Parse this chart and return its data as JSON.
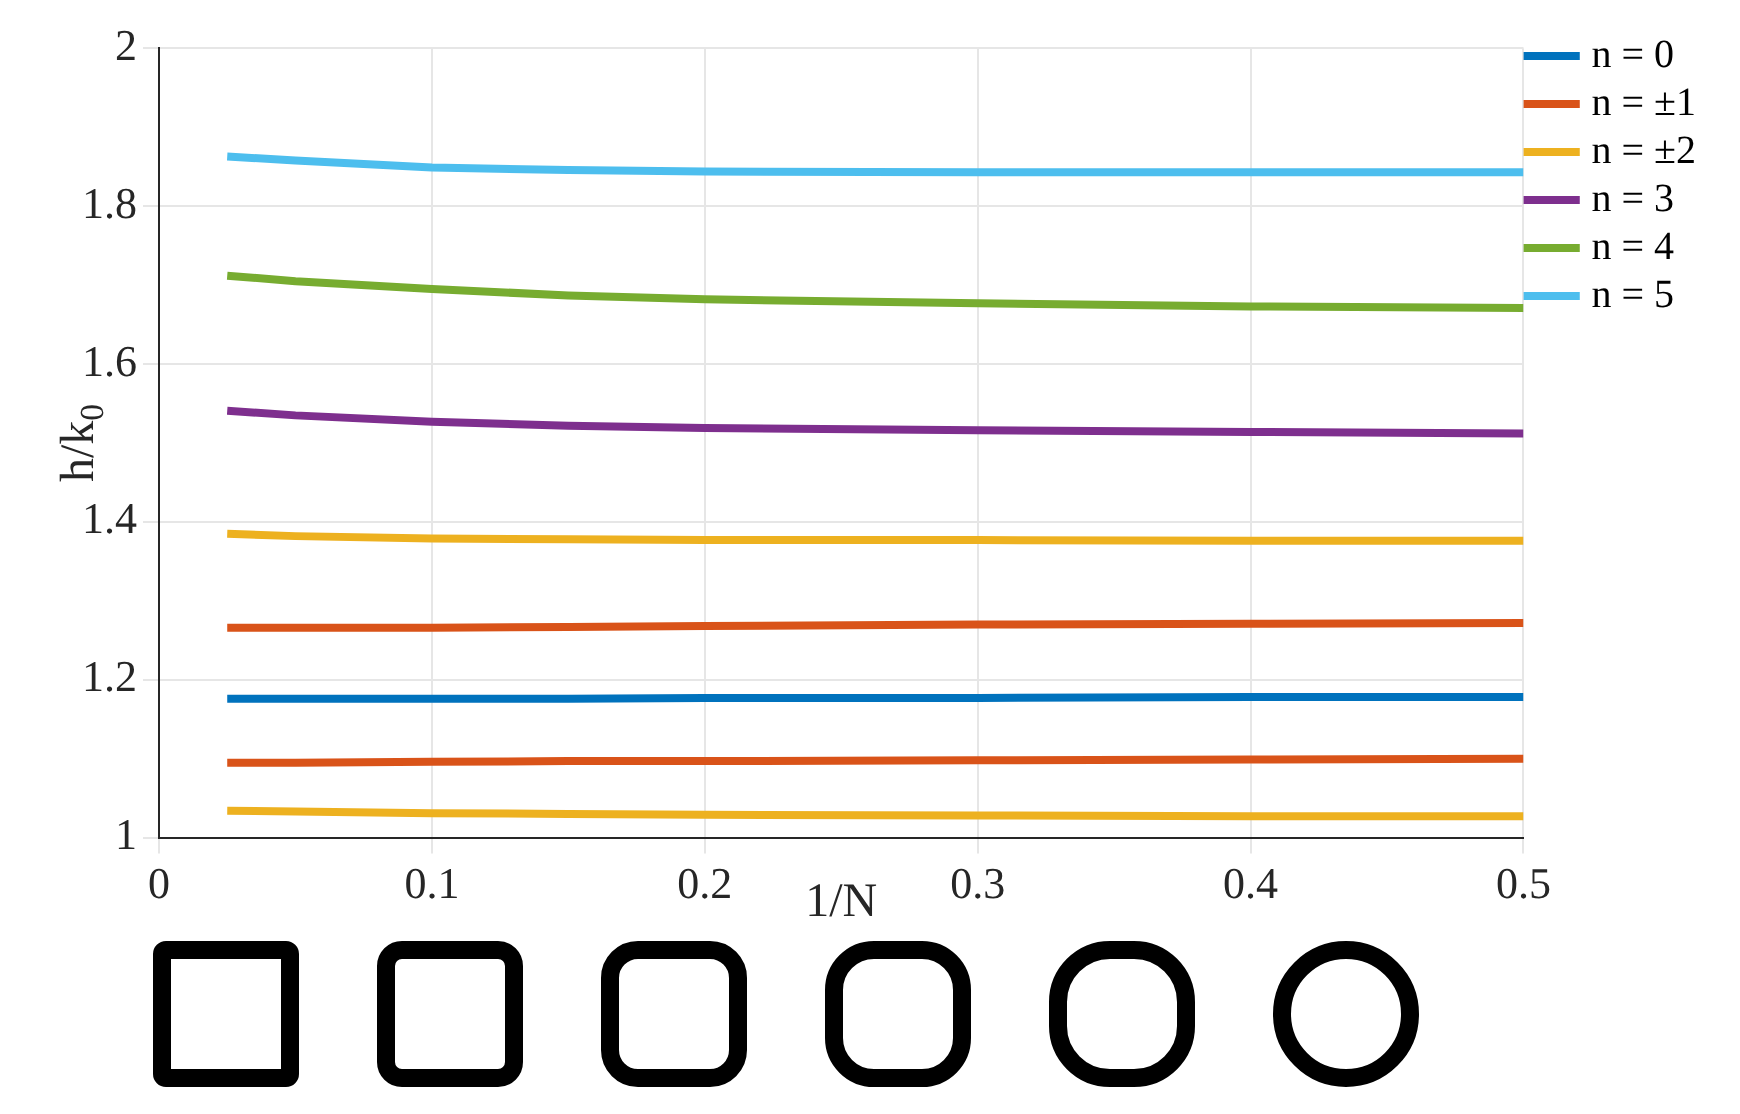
{
  "chart_data": {
    "type": "line",
    "xlabel": "1/N",
    "ylabel": "h/k$_{0}$",
    "x": [
      0.025,
      0.05,
      0.1,
      0.15,
      0.2,
      0.3,
      0.4,
      0.5
    ],
    "series": [
      {
        "name": "n = 0",
        "color": "#0072bd",
        "values": [
          1.176,
          1.176,
          1.176,
          1.176,
          1.177,
          1.177,
          1.178,
          1.178
        ]
      },
      {
        "name": "n = ±1",
        "color": "#d95319",
        "values": [
          1.266,
          1.266,
          1.266,
          1.267,
          1.268,
          1.27,
          1.271,
          1.272
        ]
      },
      {
        "color": "#d95319",
        "values": [
          1.095,
          1.095,
          1.096,
          1.097,
          1.097,
          1.098,
          1.099,
          1.1
        ]
      },
      {
        "name": "n = ±2",
        "color": "#edb120",
        "values": [
          1.385,
          1.382,
          1.379,
          1.378,
          1.377,
          1.377,
          1.376,
          1.376
        ]
      },
      {
        "color": "#edb120",
        "values": [
          1.034,
          1.033,
          1.031,
          1.03,
          1.029,
          1.028,
          1.027,
          1.027
        ]
      },
      {
        "name": "n = 3",
        "color": "#7e2f8e",
        "values": [
          1.541,
          1.535,
          1.527,
          1.522,
          1.519,
          1.516,
          1.514,
          1.512
        ]
      },
      {
        "name": "n = 4",
        "color": "#77ac30",
        "values": [
          1.712,
          1.705,
          1.695,
          1.687,
          1.682,
          1.677,
          1.673,
          1.671
        ]
      },
      {
        "name": "n = 5",
        "color": "#4dbeee",
        "values": [
          1.863,
          1.858,
          1.849,
          1.846,
          1.844,
          1.843,
          1.843,
          1.843
        ]
      }
    ],
    "xlim": [
      0,
      0.5
    ],
    "xticks": [
      0,
      0.1,
      0.2,
      0.3,
      0.4,
      0.5
    ],
    "ylim": [
      1,
      2
    ],
    "yticks": [
      1,
      1.2,
      1.4,
      1.6,
      1.8,
      2
    ],
    "grid": true,
    "legend": "top right",
    "marker": "none",
    "line_style": "solid"
  }
}
